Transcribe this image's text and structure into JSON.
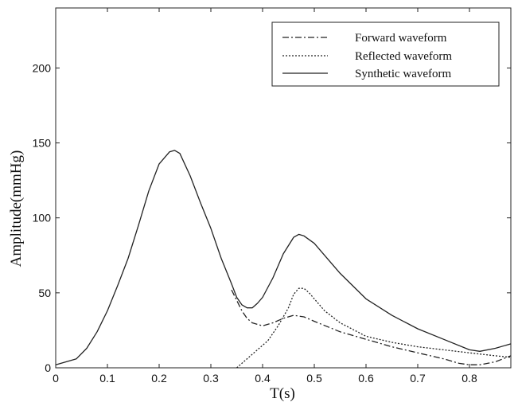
{
  "chart_data": {
    "type": "line",
    "title": "",
    "xlabel": "T(s)",
    "ylabel": "Amplitude(mmHg)",
    "xlim": [
      0,
      0.88
    ],
    "ylim": [
      0,
      240
    ],
    "xticks": [
      0,
      0.1,
      0.2,
      0.3,
      0.4,
      0.5,
      0.6,
      0.7,
      0.8
    ],
    "xtick_labels": [
      "0",
      "0.1",
      "0.2",
      "0.3",
      "0.4",
      "0.5",
      "0.6",
      "0.7",
      "0.8"
    ],
    "yticks": [
      0,
      50,
      100,
      150,
      200
    ],
    "ytick_labels": [
      "0",
      "50",
      "100",
      "150",
      "200"
    ],
    "grid": false,
    "legend_position": "top-right",
    "series": [
      {
        "name": "Forward waveform",
        "style": "dashdot",
        "color": "#222222",
        "x": [
          0.34,
          0.35,
          0.36,
          0.37,
          0.38,
          0.4,
          0.42,
          0.44,
          0.46,
          0.48,
          0.5,
          0.55,
          0.6,
          0.65,
          0.7,
          0.75,
          0.78,
          0.8,
          0.82,
          0.85,
          0.88
        ],
        "y": [
          52,
          45,
          38,
          33,
          30,
          28,
          30,
          33,
          35,
          34,
          31,
          24,
          19,
          14,
          10,
          6,
          3,
          2,
          2,
          4,
          8
        ]
      },
      {
        "name": "Reflected waveform",
        "style": "dotted",
        "color": "#222222",
        "x": [
          0.35,
          0.37,
          0.39,
          0.41,
          0.43,
          0.45,
          0.46,
          0.47,
          0.48,
          0.49,
          0.5,
          0.52,
          0.55,
          0.6,
          0.65,
          0.7,
          0.75,
          0.8,
          0.85,
          0.88
        ],
        "y": [
          0,
          6,
          12,
          18,
          28,
          40,
          49,
          53,
          53,
          50,
          46,
          38,
          30,
          21,
          17,
          14,
          12,
          10,
          8,
          7
        ]
      },
      {
        "name": "Synthetic waveform",
        "style": "solid",
        "color": "#222222",
        "x": [
          0,
          0.02,
          0.04,
          0.06,
          0.08,
          0.1,
          0.12,
          0.14,
          0.16,
          0.18,
          0.2,
          0.22,
          0.23,
          0.24,
          0.26,
          0.28,
          0.3,
          0.32,
          0.34,
          0.35,
          0.36,
          0.37,
          0.38,
          0.39,
          0.4,
          0.42,
          0.44,
          0.46,
          0.47,
          0.48,
          0.5,
          0.52,
          0.55,
          0.6,
          0.65,
          0.7,
          0.75,
          0.8,
          0.82,
          0.85,
          0.88
        ],
        "y": [
          2,
          4,
          6,
          13,
          24,
          38,
          55,
          73,
          95,
          118,
          136,
          144,
          145,
          143,
          128,
          110,
          93,
          73,
          56,
          47,
          42,
          40,
          40,
          43,
          47,
          60,
          76,
          87,
          89,
          88,
          83,
          75,
          63,
          46,
          35,
          26,
          19,
          12,
          11,
          13,
          16
        ]
      }
    ]
  }
}
